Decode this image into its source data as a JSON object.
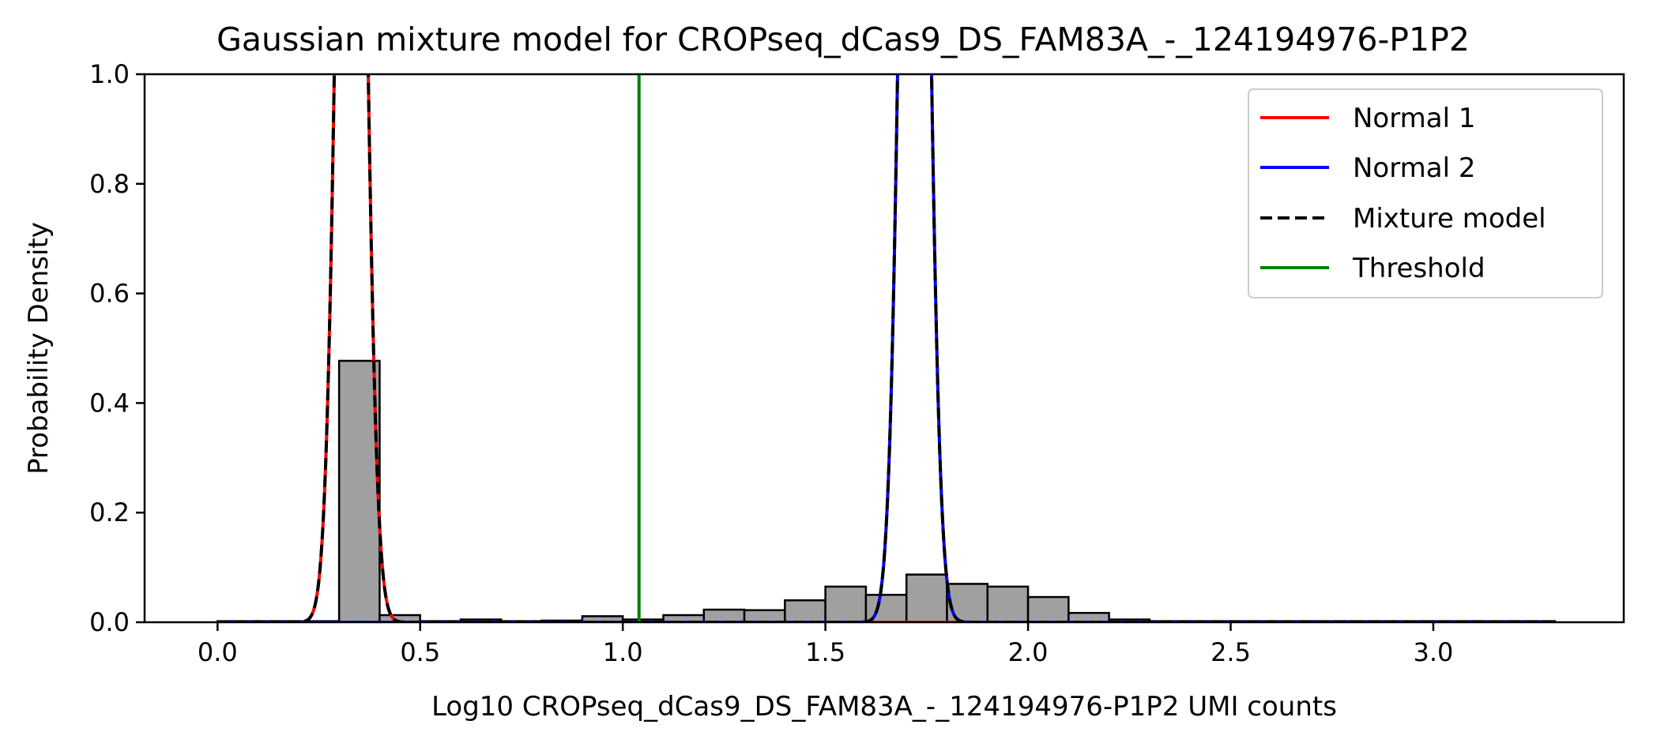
{
  "chart_data": {
    "type": "histogram",
    "title": "Gaussian mixture model for CROPseq_dCas9_DS_FAM83A_-_124194976-P1P2",
    "xlabel": "Log10 CROPseq_dCas9_DS_FAM83A_-_124194976-P1P2 UMI counts",
    "ylabel": "Probability Density",
    "xlim": [
      -0.18,
      3.47
    ],
    "ylim": [
      0,
      1.0
    ],
    "x_ticks": [
      0.0,
      0.5,
      1.0,
      1.5,
      2.0,
      2.5,
      3.0
    ],
    "x_tick_labels": [
      "0.0",
      "0.5",
      "1.0",
      "1.5",
      "2.0",
      "2.5",
      "3.0"
    ],
    "y_ticks": [
      0.0,
      0.2,
      0.4,
      0.6,
      0.8,
      1.0
    ],
    "y_tick_labels": [
      "0.0",
      "0.2",
      "0.4",
      "0.6",
      "0.8",
      "1.0"
    ],
    "grid": false,
    "legend_position": "top-right",
    "histogram": {
      "bin_width": 0.1,
      "bin_starts": [
        0.0,
        0.1,
        0.2,
        0.3,
        0.4,
        0.5,
        0.6,
        0.7,
        0.8,
        0.9,
        1.0,
        1.1,
        1.2,
        1.3,
        1.4,
        1.5,
        1.6,
        1.7,
        1.8,
        1.9,
        2.0,
        2.1,
        2.2,
        2.3,
        2.4,
        2.5,
        2.6,
        2.7,
        2.8,
        2.9,
        3.0,
        3.1,
        3.2
      ],
      "densities": [
        0.002,
        0.002,
        0.002,
        0.477,
        0.013,
        0.002,
        0.005,
        0.002,
        0.003,
        0.011,
        0.005,
        0.013,
        0.023,
        0.022,
        0.04,
        0.065,
        0.05,
        0.087,
        0.07,
        0.065,
        0.046,
        0.017,
        0.005,
        0.002,
        0.002,
        0.002,
        0.002,
        0.002,
        0.002,
        0.002,
        0.002,
        0.002,
        0.002
      ],
      "fill_color": "#a0a0a0",
      "edge_color": "#000000"
    },
    "curve_domain": [
      0.0,
      3.3
    ],
    "series": [
      {
        "name": "Normal 1",
        "kind": "normal",
        "mean": 0.33,
        "sd": 0.03,
        "weight": 0.2,
        "color": "#ff0000",
        "style": "solid"
      },
      {
        "name": "Normal 2",
        "kind": "normal",
        "mean": 1.72,
        "sd": 0.03,
        "weight": 0.2,
        "color": "#0000ff",
        "style": "solid"
      },
      {
        "name": "Mixture model",
        "kind": "mixture",
        "color": "#000000",
        "style": "dashed"
      },
      {
        "name": "Threshold",
        "kind": "vline",
        "x": 1.04,
        "color": "#008000",
        "style": "solid"
      }
    ]
  }
}
